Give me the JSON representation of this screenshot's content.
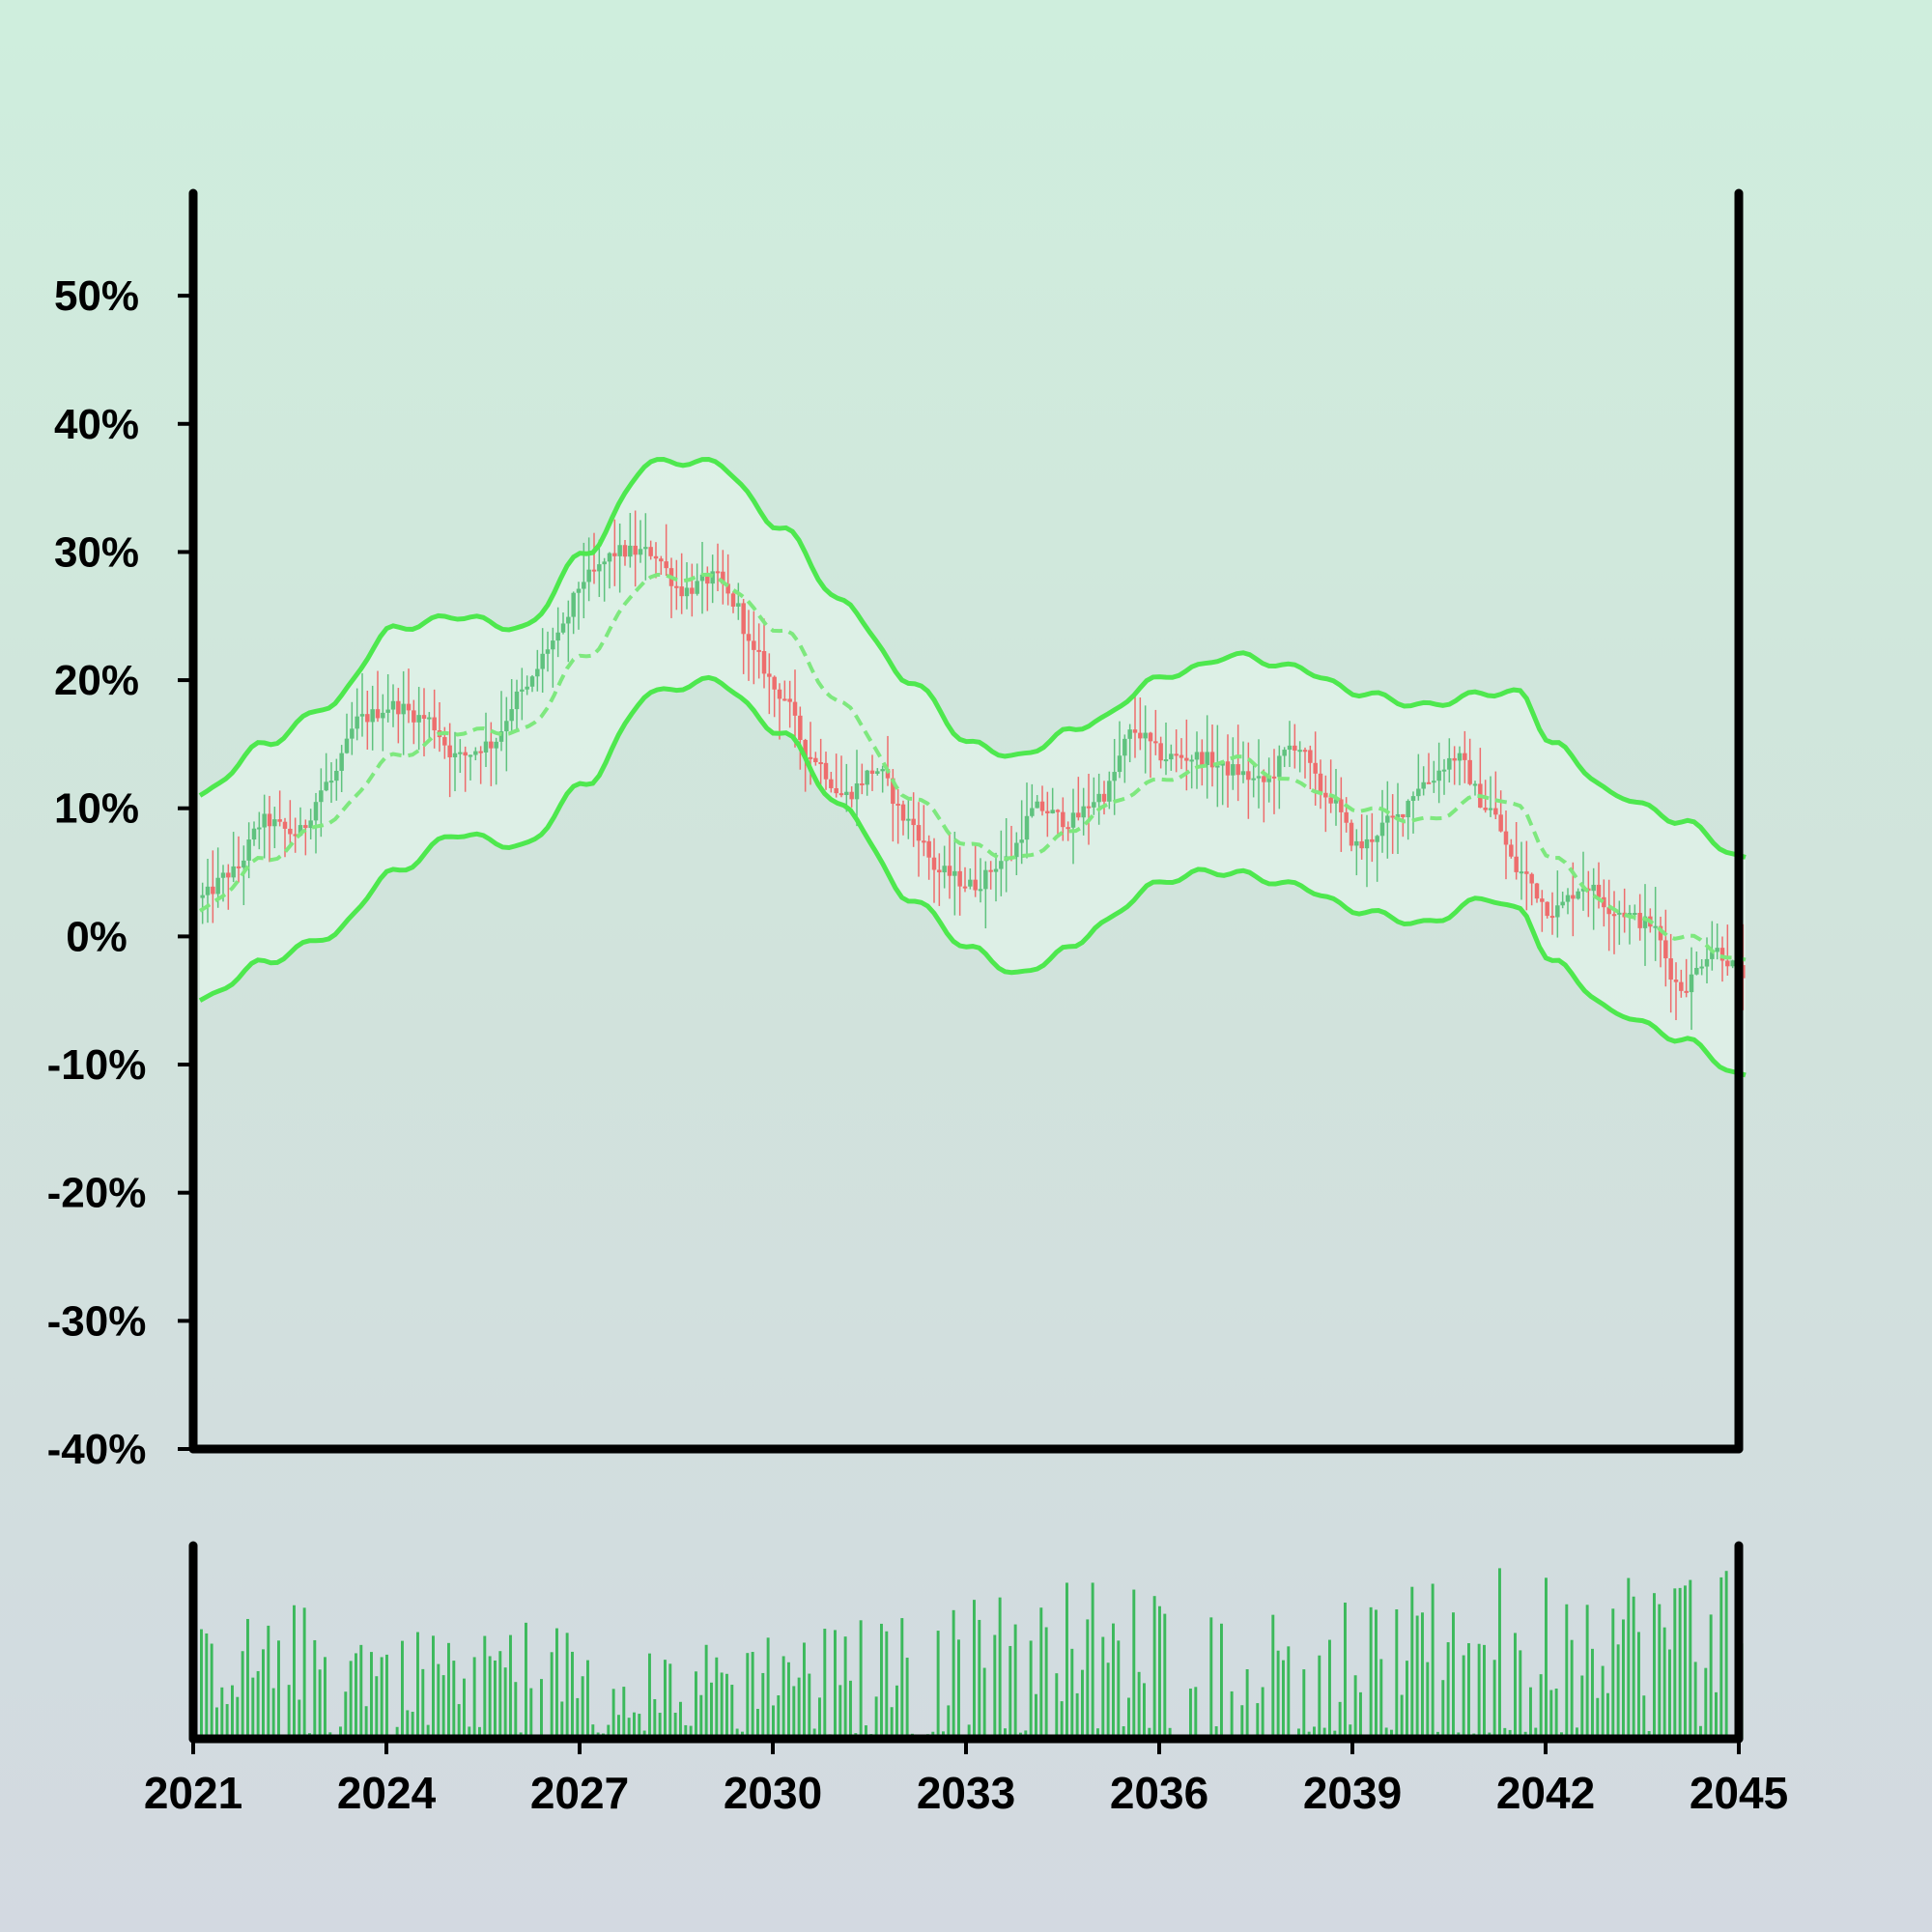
{
  "chart_data": [
    {
      "type": "candlestick",
      "title": "",
      "xlabel": "",
      "ylabel": "",
      "xlim": [
        2021,
        2045
      ],
      "ylim": [
        -40,
        58
      ],
      "y_unit": "%",
      "y_ticks": [
        -40,
        -30,
        -20,
        -10,
        0,
        10,
        20,
        30,
        40,
        50
      ],
      "y_tick_labels": [
        "-40%",
        "-30%",
        "-20%",
        "-10%",
        "0%",
        "10%",
        "20%",
        "30%",
        "40%",
        "50%"
      ],
      "grid": false,
      "colors": {
        "up": "#5fc27e",
        "down": "#ee6d6d",
        "band": "#4ee84e",
        "mid": "#7ee87e",
        "band_fill": "#e2f4ea",
        "frame": "#000000"
      },
      "price_anchors": [
        [
          2021.0,
          3
        ],
        [
          2021.5,
          5
        ],
        [
          2022.0,
          9
        ],
        [
          2022.5,
          8
        ],
        [
          2023.0,
          12
        ],
        [
          2023.5,
          17
        ],
        [
          2024.0,
          18
        ],
        [
          2024.5,
          17
        ],
        [
          2025.0,
          14
        ],
        [
          2025.5,
          15
        ],
        [
          2026.0,
          19
        ],
        [
          2026.5,
          23
        ],
        [
          2027.0,
          28
        ],
        [
          2027.5,
          30
        ],
        [
          2028.0,
          30
        ],
        [
          2028.5,
          27
        ],
        [
          2029.0,
          28
        ],
        [
          2029.3,
          26
        ],
        [
          2029.6,
          22
        ],
        [
          2030.0,
          19
        ],
        [
          2030.5,
          14
        ],
        [
          2031.0,
          11
        ],
        [
          2031.5,
          13
        ],
        [
          2032.0,
          9
        ],
        [
          2032.5,
          5
        ],
        [
          2033.0,
          4
        ],
        [
          2033.5,
          6
        ],
        [
          2034.0,
          10
        ],
        [
          2034.5,
          9
        ],
        [
          2035.0,
          11
        ],
        [
          2035.5,
          16
        ],
        [
          2036.0,
          14
        ],
        [
          2036.5,
          14
        ],
        [
          2037.0,
          13
        ],
        [
          2037.5,
          12
        ],
        [
          2038.0,
          15
        ],
        [
          2038.5,
          11
        ],
        [
          2039.0,
          7
        ],
        [
          2039.5,
          9
        ],
        [
          2040.0,
          12
        ],
        [
          2040.5,
          14
        ],
        [
          2041.0,
          10
        ],
        [
          2041.5,
          5
        ],
        [
          2042.0,
          2
        ],
        [
          2042.5,
          4
        ],
        [
          2043.0,
          2
        ],
        [
          2043.5,
          1
        ],
        [
          2044.0,
          -4
        ],
        [
          2044.5,
          -1
        ],
        [
          2045.0,
          -3
        ]
      ],
      "band_upper": [
        [
          2021.0,
          11
        ],
        [
          2022.0,
          15
        ],
        [
          2023.0,
          18
        ],
        [
          2024.0,
          24
        ],
        [
          2025.0,
          25
        ],
        [
          2026.0,
          24
        ],
        [
          2027.0,
          30
        ],
        [
          2028.0,
          37
        ],
        [
          2029.0,
          37
        ],
        [
          2030.0,
          32
        ],
        [
          2031.0,
          26
        ],
        [
          2032.0,
          20
        ],
        [
          2033.0,
          15
        ],
        [
          2033.7,
          14
        ],
        [
          2034.5,
          16
        ],
        [
          2035.0,
          17
        ],
        [
          2035.8,
          20
        ],
        [
          2036.5,
          21
        ],
        [
          2037.0,
          22
        ],
        [
          2038.0,
          21
        ],
        [
          2039.0,
          19
        ],
        [
          2040.0,
          18
        ],
        [
          2041.0,
          19
        ],
        [
          2041.5,
          19
        ],
        [
          2042.0,
          15
        ],
        [
          2043.0,
          11
        ],
        [
          2044.0,
          9
        ],
        [
          2045.0,
          6
        ]
      ],
      "band_mid": [
        [
          2021.0,
          2
        ],
        [
          2022.0,
          6
        ],
        [
          2023.0,
          9
        ],
        [
          2024.0,
          14
        ],
        [
          2025.0,
          16
        ],
        [
          2026.0,
          16
        ],
        [
          2027.0,
          22
        ],
        [
          2028.0,
          28
        ],
        [
          2029.0,
          28
        ],
        [
          2030.0,
          24
        ],
        [
          2031.0,
          18
        ],
        [
          2032.0,
          11
        ],
        [
          2033.0,
          7
        ],
        [
          2033.7,
          6
        ],
        [
          2034.5,
          8
        ],
        [
          2035.0,
          10
        ],
        [
          2035.8,
          12
        ],
        [
          2036.5,
          13
        ],
        [
          2037.0,
          14
        ],
        [
          2038.0,
          12
        ],
        [
          2039.0,
          10
        ],
        [
          2040.0,
          9
        ],
        [
          2041.0,
          11
        ],
        [
          2041.5,
          10
        ],
        [
          2042.0,
          6
        ],
        [
          2043.0,
          2
        ],
        [
          2044.0,
          0
        ],
        [
          2045.0,
          -2
        ]
      ],
      "band_lower": [
        [
          2021.0,
          -5
        ],
        [
          2022.0,
          -2
        ],
        [
          2023.0,
          0
        ],
        [
          2024.0,
          5
        ],
        [
          2025.0,
          8
        ],
        [
          2026.0,
          7
        ],
        [
          2027.0,
          12
        ],
        [
          2028.0,
          19
        ],
        [
          2029.0,
          20
        ],
        [
          2030.0,
          16
        ],
        [
          2031.0,
          10
        ],
        [
          2032.0,
          3
        ],
        [
          2033.0,
          -1
        ],
        [
          2033.7,
          -3
        ],
        [
          2034.5,
          -1
        ],
        [
          2035.0,
          1
        ],
        [
          2035.8,
          4
        ],
        [
          2036.5,
          5
        ],
        [
          2037.0,
          5
        ],
        [
          2038.0,
          4
        ],
        [
          2039.0,
          2
        ],
        [
          2040.0,
          1
        ],
        [
          2041.0,
          3
        ],
        [
          2041.5,
          2
        ],
        [
          2042.0,
          -2
        ],
        [
          2043.0,
          -6
        ],
        [
          2044.0,
          -8
        ],
        [
          2045.0,
          -11
        ]
      ]
    },
    {
      "type": "bar",
      "title": "",
      "xlabel": "",
      "ylabel": "",
      "xlim": [
        2021,
        2045
      ],
      "x_ticks": [
        2021,
        2024,
        2027,
        2030,
        2033,
        2036,
        2039,
        2042,
        2045
      ],
      "x_tick_labels": [
        "2021",
        "2024",
        "2027",
        "2030",
        "2033",
        "2036",
        "2039",
        "2042",
        "2045"
      ],
      "volume_envelope": [
        [
          2021.0,
          0.45
        ],
        [
          2022.5,
          0.55
        ],
        [
          2024.0,
          0.45
        ],
        [
          2026.0,
          0.5
        ],
        [
          2028.0,
          0.35
        ],
        [
          2030.0,
          0.45
        ],
        [
          2032.0,
          0.5
        ],
        [
          2033.5,
          0.6
        ],
        [
          2035.0,
          0.65
        ],
        [
          2037.0,
          0.55
        ],
        [
          2039.0,
          0.55
        ],
        [
          2041.0,
          0.7
        ],
        [
          2043.0,
          0.7
        ],
        [
          2045.0,
          0.75
        ]
      ],
      "colors": {
        "bar": "#3cb95c"
      }
    }
  ]
}
